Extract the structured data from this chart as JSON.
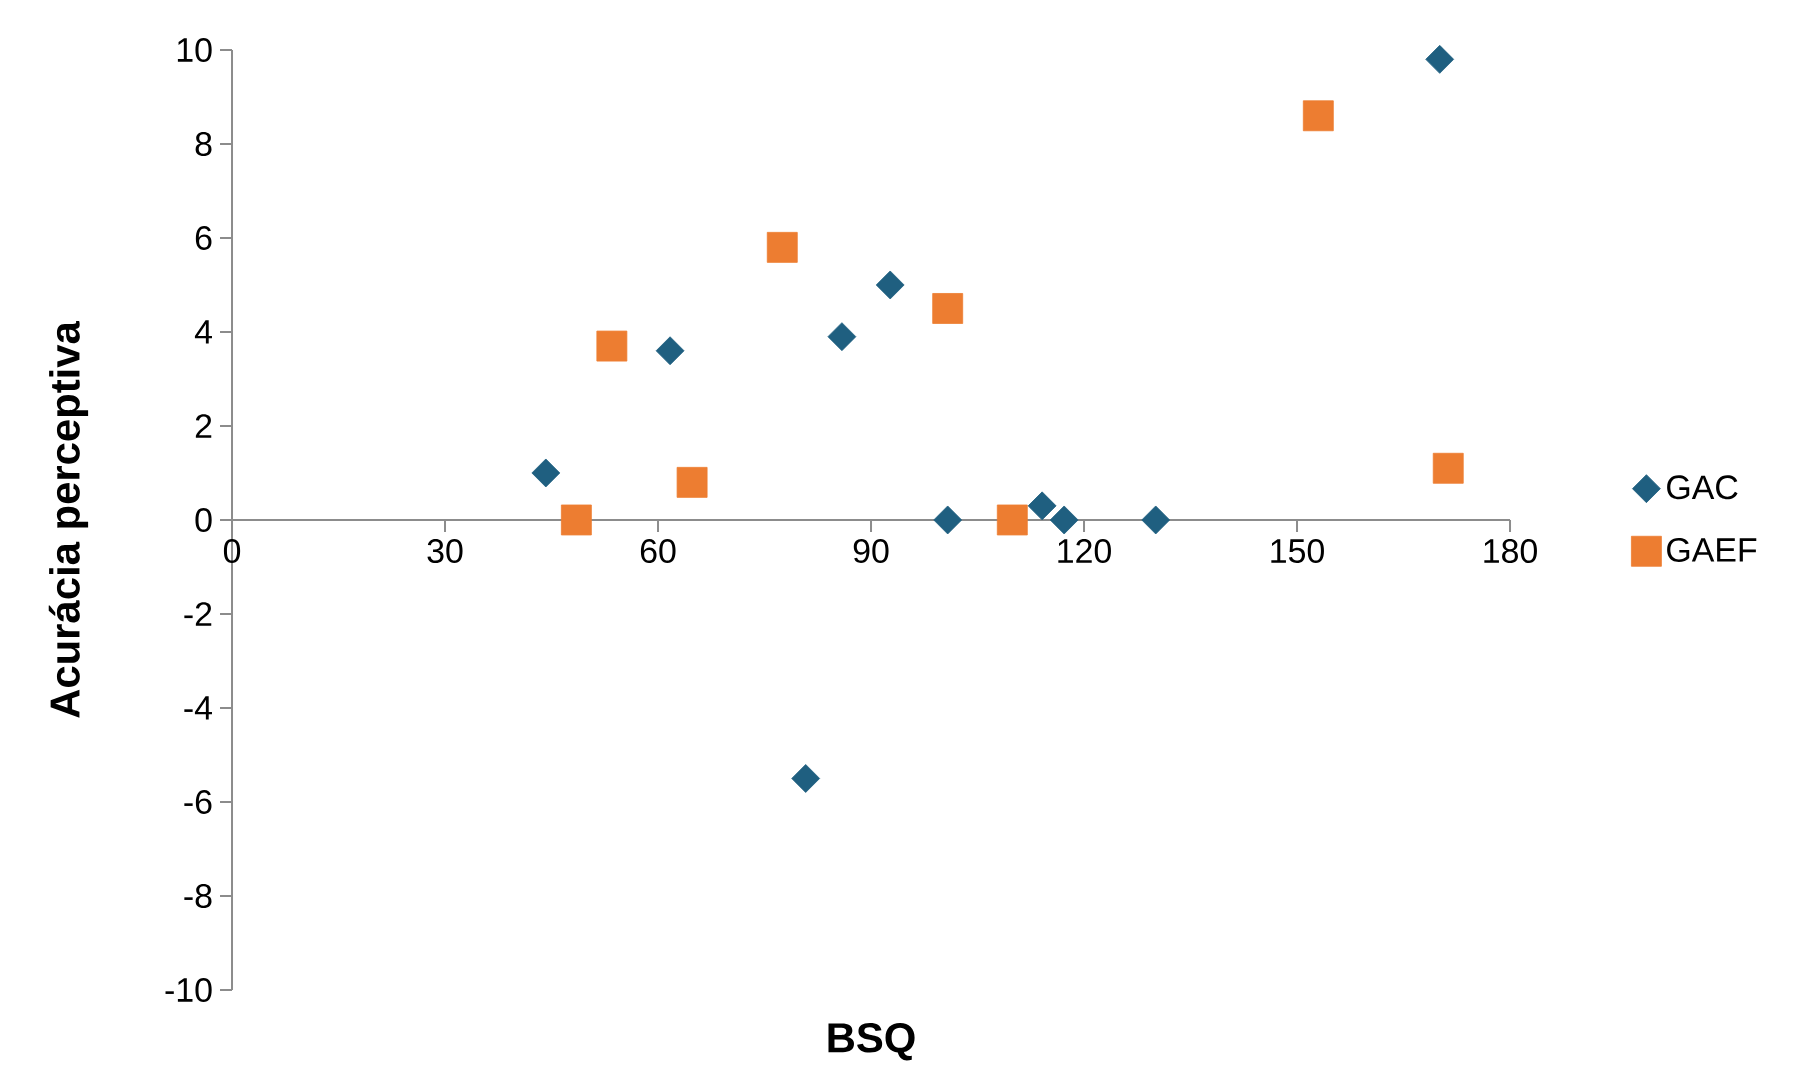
{
  "chart_data": {
    "type": "scatter",
    "xlabel": "BSQ",
    "ylabel": "Acurácia perceptiva",
    "xlim": [
      0,
      180
    ],
    "xticks": [
      0,
      30,
      60,
      90,
      120,
      150,
      180
    ],
    "ylim": [
      -10,
      10
    ],
    "yticks": [
      -10,
      -8,
      -6,
      -4,
      -2,
      0,
      2,
      4,
      6,
      8,
      10
    ],
    "legend": "right",
    "grid": false,
    "series": [
      {
        "name": "GAC",
        "color": "#1f5f80",
        "marker": "diamond",
        "x": [
          44.2,
          61.7,
          85.9,
          92.7,
          80.8,
          100.8,
          114.1,
          117.2,
          130.1,
          170.1
        ],
        "values": [
          1.0,
          3.6,
          3.9,
          5.0,
          -5.5,
          0,
          0.3,
          0,
          0,
          9.8
        ]
      },
      {
        "name": "GAEF",
        "color": "#ed7d31",
        "marker": "square",
        "x": [
          48.5,
          53.5,
          64.8,
          77.5,
          100.8,
          109.9,
          153,
          171.3
        ],
        "values": [
          0,
          3.7,
          0.8,
          5.8,
          4.5,
          0,
          8.6,
          1.1
        ]
      }
    ]
  }
}
